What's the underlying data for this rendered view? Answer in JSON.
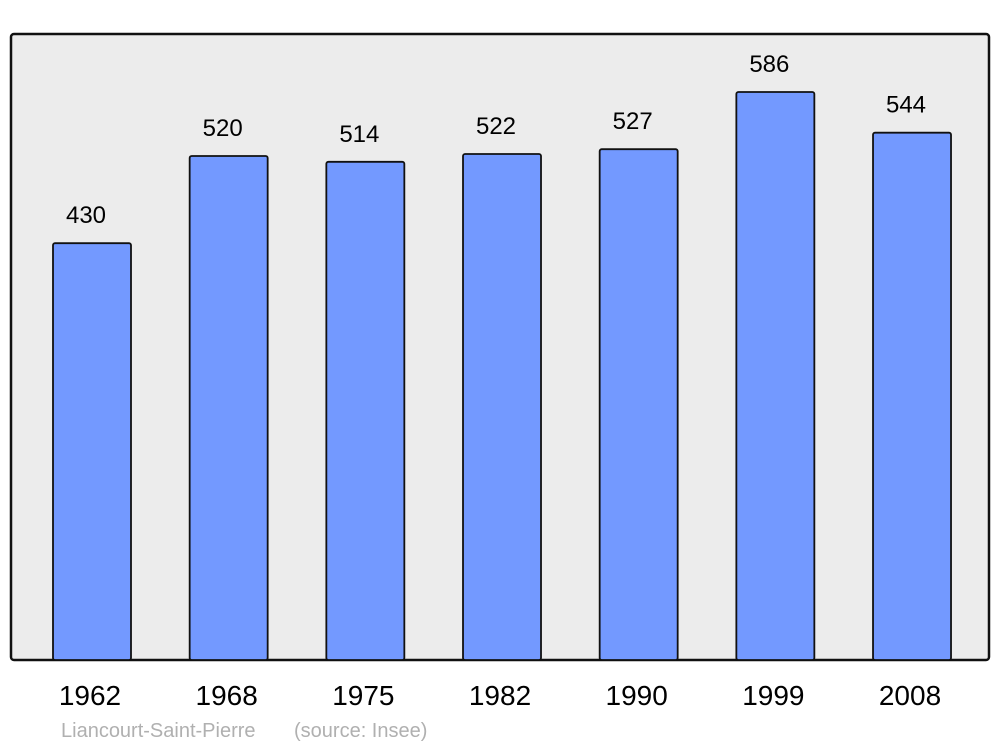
{
  "chart_data": {
    "type": "bar",
    "categories": [
      "1962",
      "1968",
      "1975",
      "1982",
      "1990",
      "1999",
      "2008"
    ],
    "values": [
      430,
      520,
      514,
      522,
      527,
      586,
      544
    ],
    "ylim": [
      0,
      645
    ],
    "grid": false,
    "data_labels": true,
    "bar_color": "#7399ff",
    "plot_background": "#ececec",
    "place": "Liancourt-Saint-Pierre",
    "source": "(source: Insee)"
  }
}
